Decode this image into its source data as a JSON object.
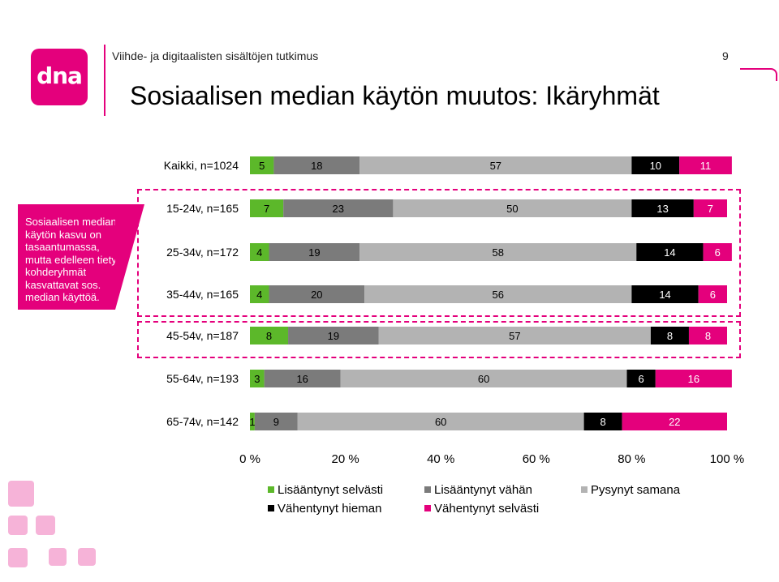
{
  "header": {
    "logo_text": "dna",
    "subtitle": "Viihde- ja digitaalisten sisältöjen tutkimus",
    "page_number": "9",
    "title": "Sosiaalisen median käytön muutos: Ikäryhmät"
  },
  "callout": {
    "text": "Sosiaalisen median käytön kasvu on tasaantumassa, mutta edelleen tietyt kohderyhmät kasvattavat sos. median käyttöä."
  },
  "chart_data": {
    "type": "bar",
    "orientation": "horizontal",
    "stacked": true,
    "normalized_percent": true,
    "categories": [
      "Kaikki, n=1024",
      "15-24v, n=165",
      "25-34v, n=172",
      "35-44v, n=165",
      "45-54v, n=187",
      "55-64v, n=193",
      "65-74v, n=142"
    ],
    "series": [
      {
        "name": "Lisääntynyt selvästi",
        "color": "#5cb82a",
        "values": [
          5,
          7,
          4,
          4,
          8,
          3,
          1
        ]
      },
      {
        "name": "Lisääntynyt vähän",
        "color": "#7b7b7b",
        "values": [
          18,
          23,
          19,
          20,
          19,
          16,
          9
        ]
      },
      {
        "name": "Pysynyt samana",
        "color": "#b3b3b3",
        "values": [
          57,
          50,
          58,
          56,
          57,
          60,
          60
        ]
      },
      {
        "name": "Vähentynyt hieman",
        "color": "#000000",
        "values": [
          10,
          13,
          14,
          14,
          8,
          6,
          8
        ]
      },
      {
        "name": "Vähentynyt selvästi",
        "color": "#e4007c",
        "values": [
          11,
          7,
          6,
          6,
          8,
          16,
          22
        ]
      }
    ],
    "x_ticks": [
      "0 %",
      "20 %",
      "40 %",
      "60 %",
      "80 %",
      "100 %"
    ],
    "xlim": [
      0,
      100
    ],
    "grid": false,
    "legend_position": "bottom"
  },
  "colors": {
    "accent": "#e4007c",
    "label_on_dark": "#ffffff",
    "label_on_light": "#000000"
  }
}
